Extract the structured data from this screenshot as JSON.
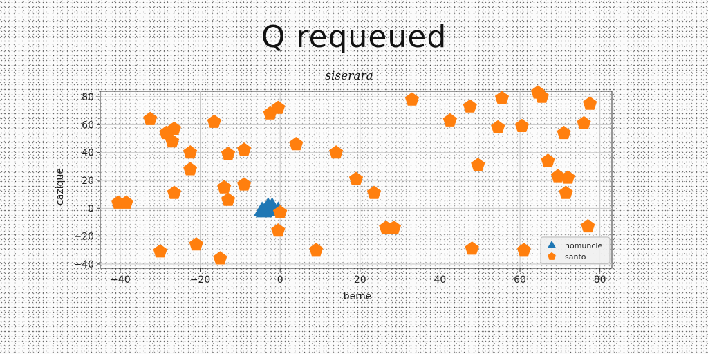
{
  "chart_data": {
    "type": "scatter",
    "title": "Q requeued",
    "subtitle": "siserara",
    "xlabel": "berne",
    "ylabel": "cazique",
    "xlim": [
      -45,
      83
    ],
    "ylim": [
      -43,
      84
    ],
    "xticks": [
      -40,
      -20,
      0,
      20,
      40,
      60,
      80
    ],
    "yticks": [
      -40,
      -20,
      0,
      20,
      40,
      60,
      80
    ],
    "grid": true,
    "legend_position": "bottom-right",
    "series": [
      {
        "name": "homuncle",
        "marker": "triangle",
        "color": "#1f77b4",
        "points": [
          [
            -4.5,
            -2
          ],
          [
            -3,
            1
          ],
          [
            -2,
            1
          ],
          [
            -1.5,
            -2
          ],
          [
            -0.5,
            -2
          ],
          [
            -4,
            -3
          ]
        ]
      },
      {
        "name": "santo",
        "marker": "pentagon",
        "color": "#ff7f0e",
        "points": [
          [
            -40.5,
            4
          ],
          [
            -38.5,
            4
          ],
          [
            -32.5,
            64
          ],
          [
            -30,
            -31
          ],
          [
            -28.5,
            54
          ],
          [
            -27,
            48
          ],
          [
            -26.5,
            57
          ],
          [
            -26.5,
            11
          ],
          [
            -22.5,
            40
          ],
          [
            -22.5,
            28
          ],
          [
            -21,
            -26
          ],
          [
            -16.5,
            62
          ],
          [
            -15,
            -36
          ],
          [
            -14,
            15
          ],
          [
            -13,
            6
          ],
          [
            -13,
            39
          ],
          [
            -9,
            42
          ],
          [
            -9,
            17
          ],
          [
            -2.5,
            68
          ],
          [
            -0.5,
            72
          ],
          [
            -0.5,
            -16
          ],
          [
            0,
            -3
          ],
          [
            4,
            46
          ],
          [
            9,
            -30
          ],
          [
            14,
            40
          ],
          [
            19,
            21
          ],
          [
            23.5,
            11
          ],
          [
            26.5,
            -14
          ],
          [
            28.5,
            -14
          ],
          [
            33,
            78
          ],
          [
            42.5,
            63
          ],
          [
            47.5,
            73
          ],
          [
            48,
            -29
          ],
          [
            49.5,
            31
          ],
          [
            54.5,
            58
          ],
          [
            55.5,
            79
          ],
          [
            60.5,
            59
          ],
          [
            61,
            -30
          ],
          [
            64.5,
            83
          ],
          [
            65.5,
            80
          ],
          [
            67,
            34
          ],
          [
            69.5,
            23
          ],
          [
            71,
            54
          ],
          [
            71.5,
            11
          ],
          [
            72,
            22
          ],
          [
            76,
            61
          ],
          [
            77,
            -13
          ],
          [
            77.5,
            75
          ]
        ]
      }
    ]
  }
}
